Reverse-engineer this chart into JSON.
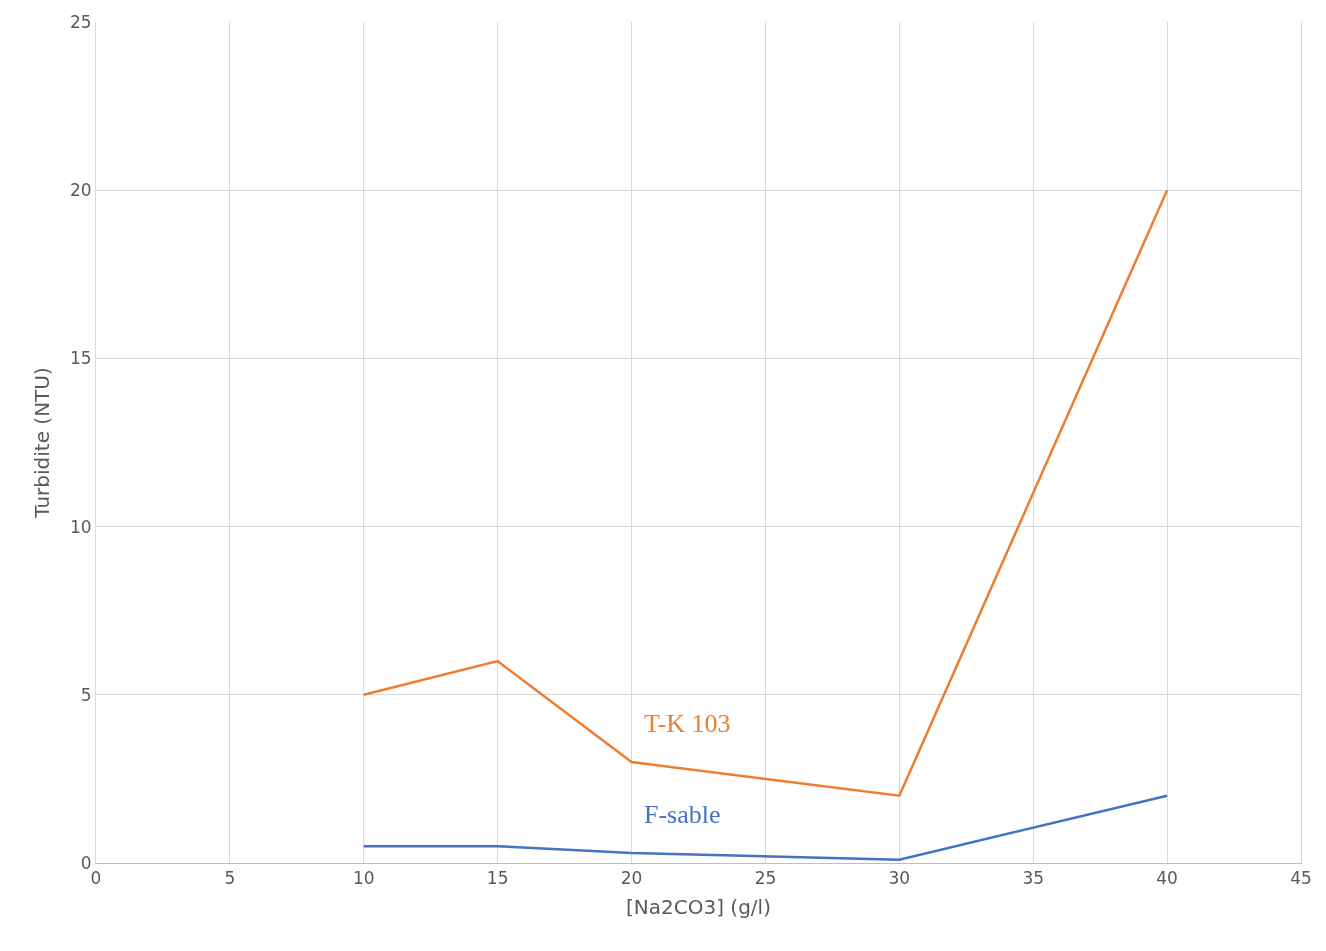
{
  "chart_data": {
    "type": "line",
    "xlabel": "[Na2CO3] (g/l)",
    "ylabel": "Turbidite (NTU)",
    "x": [
      10,
      15,
      20,
      30,
      40
    ],
    "series": [
      {
        "name": "F-sable",
        "color": "#4472c4",
        "values": [
          0.5,
          0.5,
          0.3,
          0.1,
          2
        ]
      },
      {
        "name": "T-K 103",
        "color": "#ed7d31",
        "values": [
          5,
          6,
          3,
          2,
          20
        ]
      }
    ],
    "xlim": [
      0,
      45
    ],
    "xticks": [
      0,
      5,
      10,
      15,
      20,
      25,
      30,
      35,
      40,
      45
    ],
    "ylim": [
      0,
      25
    ],
    "yticks": [
      0,
      5,
      10,
      15,
      20,
      25
    ],
    "grid": true,
    "legend": false,
    "marker": "none",
    "line_style": "solid"
  }
}
